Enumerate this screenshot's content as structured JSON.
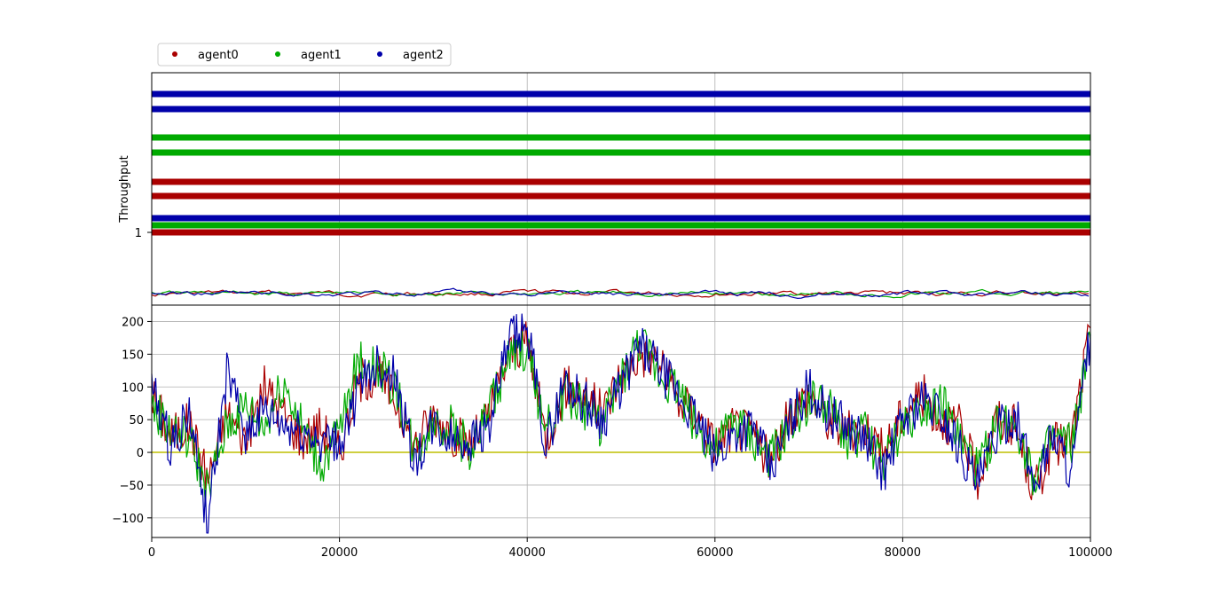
{
  "chart_data": {
    "type": "line",
    "legend": {
      "placement": "top-left, above plot",
      "entries": [
        {
          "name": "agent0",
          "color": "#aa0000"
        },
        {
          "name": "agent1",
          "color": "#00aa00"
        },
        {
          "name": "agent2",
          "color": "#0000aa"
        }
      ]
    },
    "x": {
      "range": [
        0,
        100000
      ],
      "ticks": [
        0,
        20000,
        40000,
        60000,
        80000,
        100000
      ],
      "tick_labels": [
        "0",
        "20000",
        "40000",
        "60000",
        "80000",
        "100000"
      ],
      "grid": true
    },
    "top_panel": {
      "ylabel": "Throughput",
      "y_tick_labels": [
        "1"
      ],
      "dot_bands": [
        {
          "series": "agent2",
          "rows": 2,
          "color": "#0000aa"
        },
        {
          "series": "agent1",
          "rows": 2,
          "color": "#00aa00"
        },
        {
          "series": "agent0",
          "rows": 2,
          "color": "#aa0000"
        },
        {
          "series": "agent2",
          "rows": 1,
          "color": "#0000aa"
        },
        {
          "series": "agent1",
          "rows": 1,
          "color": "#00aa00"
        },
        {
          "series": "agent0",
          "rows": 1,
          "color": "#aa0000"
        }
      ],
      "bottom_traces": "small fluctuating throughput lines for agent0, agent1, agent2"
    },
    "bottom_panel": {
      "ylim": [
        -130,
        225
      ],
      "y_ticks": [
        -100,
        -50,
        0,
        50,
        100,
        150,
        200
      ],
      "y_tick_labels": [
        "−100",
        "−50",
        "0",
        "50",
        "100",
        "150",
        "200"
      ],
      "grid": true,
      "zero_line_color": "#bfbf00",
      "series": [
        {
          "name": "agent0",
          "color": "#aa0000",
          "x": [
            0,
            2000,
            4000,
            6000,
            8000,
            10000,
            12000,
            14000,
            16000,
            18000,
            20000,
            22000,
            24000,
            26000,
            28000,
            30000,
            32000,
            34000,
            36000,
            38000,
            40000,
            42000,
            44000,
            46000,
            48000,
            50000,
            52000,
            54000,
            56000,
            58000,
            60000,
            62000,
            64000,
            66000,
            68000,
            70000,
            72000,
            74000,
            76000,
            78000,
            80000,
            82000,
            84000,
            86000,
            88000,
            90000,
            92000,
            94000,
            96000,
            98000,
            100000
          ],
          "y": [
            90,
            25,
            45,
            -40,
            60,
            20,
            100,
            60,
            20,
            40,
            0,
            110,
            120,
            80,
            10,
            60,
            30,
            10,
            60,
            150,
            170,
            20,
            100,
            90,
            60,
            120,
            150,
            140,
            80,
            60,
            10,
            40,
            30,
            -20,
            60,
            90,
            50,
            30,
            40,
            0,
            60,
            90,
            50,
            40,
            -40,
            50,
            40,
            -60,
            10,
            20,
            190
          ]
        },
        {
          "name": "agent1",
          "color": "#00aa00",
          "x": [
            0,
            2000,
            4000,
            6000,
            8000,
            10000,
            12000,
            14000,
            16000,
            18000,
            20000,
            22000,
            24000,
            26000,
            28000,
            30000,
            32000,
            34000,
            36000,
            38000,
            40000,
            42000,
            44000,
            46000,
            48000,
            50000,
            52000,
            54000,
            56000,
            58000,
            60000,
            62000,
            64000,
            66000,
            68000,
            70000,
            72000,
            74000,
            76000,
            78000,
            80000,
            82000,
            84000,
            86000,
            88000,
            90000,
            92000,
            94000,
            96000,
            98000,
            100000
          ],
          "y": [
            70,
            35,
            20,
            -60,
            40,
            70,
            40,
            110,
            40,
            -20,
            30,
            140,
            130,
            100,
            0,
            50,
            40,
            0,
            70,
            140,
            160,
            30,
            90,
            70,
            40,
            110,
            170,
            120,
            100,
            40,
            0,
            50,
            20,
            -10,
            40,
            80,
            70,
            20,
            30,
            -20,
            40,
            70,
            80,
            20,
            -30,
            40,
            50,
            -40,
            20,
            10,
            170
          ]
        },
        {
          "name": "agent2",
          "color": "#0000aa",
          "x": [
            0,
            2000,
            4000,
            6000,
            8000,
            10000,
            12000,
            14000,
            16000,
            18000,
            20000,
            22000,
            24000,
            26000,
            28000,
            30000,
            32000,
            34000,
            36000,
            38000,
            40000,
            42000,
            44000,
            46000,
            48000,
            50000,
            52000,
            54000,
            56000,
            58000,
            60000,
            62000,
            64000,
            66000,
            68000,
            70000,
            72000,
            74000,
            76000,
            78000,
            80000,
            82000,
            84000,
            86000,
            88000,
            90000,
            92000,
            94000,
            96000,
            98000,
            100000
          ],
          "y": [
            100,
            10,
            60,
            -110,
            120,
            30,
            60,
            40,
            30,
            20,
            10,
            90,
            140,
            110,
            -20,
            40,
            20,
            20,
            40,
            170,
            190,
            10,
            110,
            80,
            50,
            100,
            160,
            130,
            90,
            50,
            -10,
            30,
            40,
            -30,
            50,
            100,
            60,
            40,
            20,
            -30,
            50,
            80,
            60,
            10,
            -50,
            30,
            60,
            -50,
            30,
            -30,
            180
          ]
        }
      ]
    }
  }
}
